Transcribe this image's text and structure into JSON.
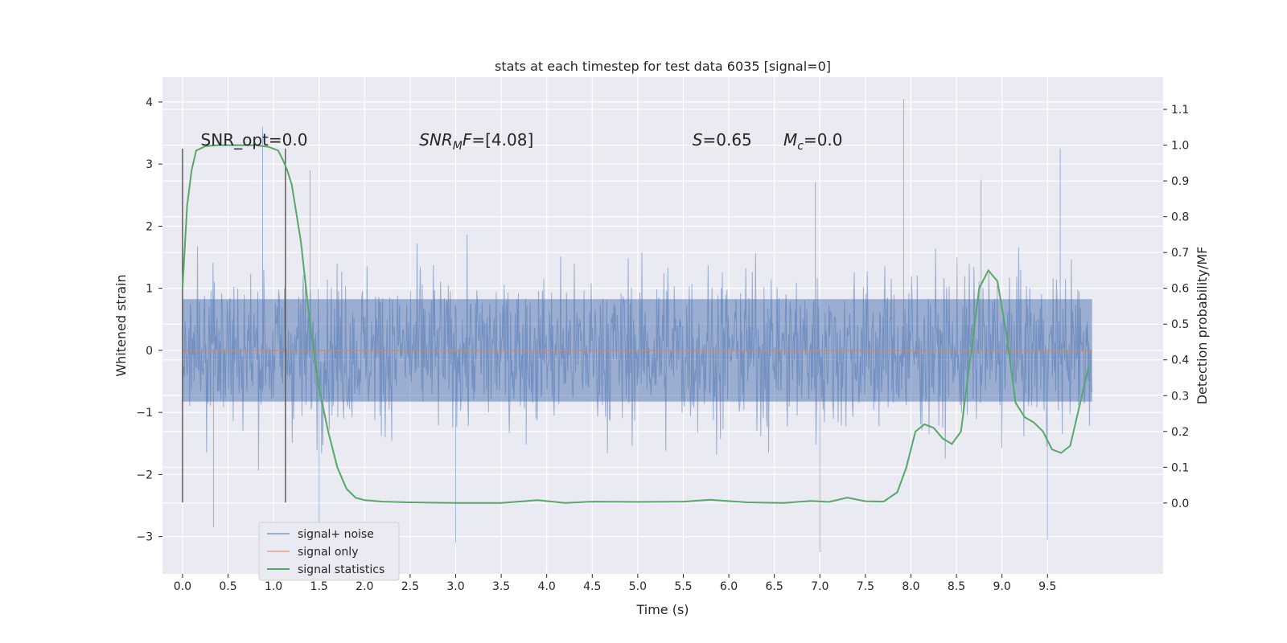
{
  "chart_data": {
    "type": "line",
    "title": "stats at each timestep for test data 6035 [signal=0]",
    "xlabel": "Time (s)",
    "ylabel_left": "Whitened strain",
    "ylabel_right": "Detection probability/MF",
    "xlim": [
      -0.22,
      10.77
    ],
    "ylim_left": [
      -3.6,
      4.4
    ],
    "ylim_right": [
      -0.198,
      1.19
    ],
    "x_ticks": [
      0.0,
      0.5,
      1.0,
      1.5,
      2.0,
      2.5,
      3.0,
      3.5,
      4.0,
      4.5,
      5.0,
      5.5,
      6.0,
      6.5,
      7.0,
      7.5,
      8.0,
      8.5,
      9.0,
      9.5
    ],
    "x_tick_labels": [
      "0.0",
      "0.5",
      "1.0",
      "1.5",
      "2.0",
      "2.5",
      "3.0",
      "3.5",
      "4.0",
      "4.5",
      "5.0",
      "5.5",
      "6.0",
      "6.5",
      "7.0",
      "7.5",
      "8.0",
      "8.5",
      "9.0",
      "9.5"
    ],
    "y_left_ticks": [
      -3,
      -2,
      -1,
      0,
      1,
      2,
      3,
      4
    ],
    "y_left_tick_labels": [
      "−3",
      "−2",
      "−1",
      "0",
      "1",
      "2",
      "3",
      "4"
    ],
    "y_right_ticks": [
      0.0,
      0.1,
      0.2,
      0.3,
      0.4,
      0.5,
      0.6,
      0.7,
      0.8,
      0.9,
      1.0,
      1.1
    ],
    "y_right_tick_labels": [
      "0.0",
      "0.1",
      "0.2",
      "0.3",
      "0.4",
      "0.5",
      "0.6",
      "0.7",
      "0.8",
      "0.9",
      "1.0",
      "1.1"
    ],
    "grid": true,
    "legend_position": "lower-left",
    "series": [
      {
        "name": "signal+ noise",
        "axis": "left",
        "color": "#4c72b0",
        "style": "dense-noise",
        "x_range": [
          0.0,
          9.99
        ],
        "typical_amplitude": 1.5,
        "peaks": [
          [
            0.88,
            3.6
          ],
          [
            7.92,
            4.05
          ],
          [
            9.64,
            3.25
          ],
          [
            1.4,
            2.9
          ],
          [
            6.95,
            2.7
          ],
          [
            8.77,
            2.75
          ]
        ],
        "troughs": [
          [
            3.0,
            -3.1
          ],
          [
            7.0,
            -3.25
          ],
          [
            9.5,
            -3.05
          ],
          [
            1.5,
            -2.85
          ],
          [
            0.34,
            -2.85
          ]
        ]
      },
      {
        "name": "signal only",
        "axis": "left",
        "color": "#dd8452",
        "x": [
          0.0,
          9.99
        ],
        "y": [
          0.0,
          0.0
        ]
      },
      {
        "name": "signal statistics",
        "axis": "right",
        "color": "#55a868",
        "x": [
          0.0,
          0.05,
          0.1,
          0.15,
          0.25,
          0.4,
          0.6,
          0.8,
          0.95,
          1.05,
          1.1,
          1.15,
          1.2,
          1.3,
          1.4,
          1.5,
          1.6,
          1.7,
          1.8,
          1.9,
          2.0,
          2.2,
          2.5,
          3.0,
          3.5,
          3.9,
          4.2,
          4.5,
          5.0,
          5.5,
          5.8,
          6.2,
          6.6,
          6.9,
          7.1,
          7.3,
          7.5,
          7.7,
          7.85,
          7.95,
          8.05,
          8.15,
          8.25,
          8.35,
          8.45,
          8.55,
          8.65,
          8.75,
          8.85,
          8.95,
          9.05,
          9.15,
          9.25,
          9.35,
          9.45,
          9.55,
          9.65,
          9.75,
          9.85,
          9.95
        ],
        "y": [
          0.6,
          0.83,
          0.93,
          0.985,
          0.997,
          1.0,
          1.0,
          1.0,
          0.995,
          0.985,
          0.96,
          0.93,
          0.89,
          0.73,
          0.5,
          0.32,
          0.2,
          0.1,
          0.04,
          0.015,
          0.008,
          0.004,
          0.002,
          0.0,
          0.0,
          0.008,
          0.0,
          0.004,
          0.003,
          0.004,
          0.009,
          0.002,
          0.0,
          0.006,
          0.003,
          0.015,
          0.005,
          0.004,
          0.03,
          0.1,
          0.2,
          0.22,
          0.21,
          0.18,
          0.165,
          0.2,
          0.4,
          0.6,
          0.65,
          0.62,
          0.47,
          0.28,
          0.24,
          0.225,
          0.2,
          0.15,
          0.14,
          0.16,
          0.27,
          0.38
        ]
      }
    ],
    "vertical_lines": [
      {
        "x": 0.0,
        "y_range": [
          -2.45,
          3.25
        ]
      },
      {
        "x": 1.13,
        "y_range": [
          -2.45,
          3.25
        ]
      }
    ],
    "annotations": [
      {
        "x": 0.2,
        "y": 3.3,
        "text": "SNR_opt=0.0"
      },
      {
        "x": 2.6,
        "y": 3.3,
        "main": "SNR",
        "sub": "M",
        "rest": "F=[4.08]"
      },
      {
        "x": 5.6,
        "y": 3.3,
        "main": "S",
        "sub": "",
        "rest": "=0.65"
      },
      {
        "x": 6.6,
        "y": 3.3,
        "main": "M",
        "sub": "c",
        "rest": "=0.0"
      }
    ],
    "legend": [
      {
        "label": "signal+ noise",
        "color": "#4c72b0"
      },
      {
        "label": "signal only",
        "color": "#dd8452"
      },
      {
        "label": "signal statistics",
        "color": "#55a868"
      }
    ]
  }
}
